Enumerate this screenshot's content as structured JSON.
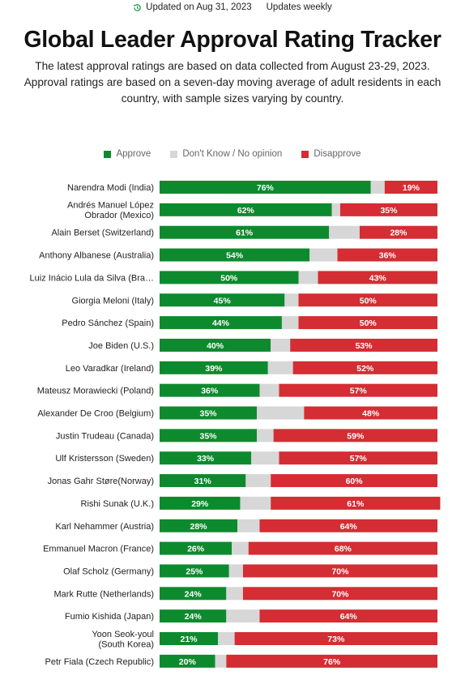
{
  "header": {
    "updated": "Updated on Aug 31, 2023",
    "frequency": "Updates weekly",
    "update_icon": "refresh-clock-icon"
  },
  "title": "Global Leader Approval Rating Tracker",
  "subtitle": "The latest approval ratings are based on data collected from August 23-29, 2023. Approval ratings are based on a seven-day moving average of adult residents in each country, with sample sizes varying by country.",
  "legend": [
    {
      "label": "Approve",
      "color": "#0e8a2e"
    },
    {
      "label": "Don't Know / No opinion",
      "color": "#d7d7d7"
    },
    {
      "label": "Disapprove",
      "color": "#d42d33"
    }
  ],
  "chart_data": {
    "type": "bar",
    "orientation": "horizontal",
    "stacked": true,
    "unit": "%",
    "xlim": [
      0,
      100
    ],
    "grid": false,
    "legend_position": "top",
    "categories": [
      [
        "Narendra Modi (India)"
      ],
      [
        "Andrés Manuel López",
        "Obrador (Mexico)"
      ],
      [
        "Alain Berset (Switzerland)"
      ],
      [
        "Anthony Albanese (Australia)"
      ],
      [
        "Luiz Inácio Lula da Silva (Bra…"
      ],
      [
        "Giorgia Meloni (Italy)"
      ],
      [
        "Pedro Sánchez (Spain)"
      ],
      [
        "Joe Biden (U.S.)"
      ],
      [
        "Leo Varadkar (Ireland)"
      ],
      [
        "Mateusz Morawiecki (Poland)"
      ],
      [
        "Alexander De Croo (Belgium)"
      ],
      [
        "Justin Trudeau (Canada)"
      ],
      [
        "Ulf Kristersson (Sweden)"
      ],
      [
        "Jonas Gahr Støre(Norway)"
      ],
      [
        "Rishi Sunak (U.K.)"
      ],
      [
        "Karl Nehammer (Austria)"
      ],
      [
        "Emmanuel Macron (France)"
      ],
      [
        "Olaf Scholz (Germany)"
      ],
      [
        "Mark Rutte (Netherlands)"
      ],
      [
        "Fumio Kishida (Japan)"
      ],
      [
        "Yoon Seok-youl",
        "(South Korea)"
      ],
      [
        "Petr Fiala (Czech Republic)"
      ]
    ],
    "series": [
      {
        "name": "Approve",
        "color": "#0e8a2e",
        "values": [
          76,
          62,
          61,
          54,
          50,
          45,
          44,
          40,
          39,
          36,
          35,
          35,
          33,
          31,
          29,
          28,
          26,
          25,
          24,
          24,
          21,
          20
        ]
      },
      {
        "name": "Don't Know / No opinion",
        "color": "#d7d7d7",
        "values": [
          5,
          3,
          11,
          10,
          7,
          5,
          6,
          7,
          9,
          7,
          17,
          6,
          10,
          9,
          11,
          8,
          6,
          5,
          6,
          12,
          6,
          4
        ]
      },
      {
        "name": "Disapprove",
        "color": "#d42d33",
        "values": [
          19,
          35,
          28,
          36,
          43,
          50,
          50,
          53,
          52,
          57,
          48,
          59,
          57,
          60,
          61,
          64,
          68,
          70,
          70,
          64,
          73,
          76
        ]
      }
    ],
    "data_labels": {
      "Approve": [
        "76%",
        "62%",
        "61%",
        "54%",
        "50%",
        "45%",
        "44%",
        "40%",
        "39%",
        "36%",
        "35%",
        "35%",
        "33%",
        "31%",
        "29%",
        "28%",
        "26%",
        "25%",
        "24%",
        "24%",
        "21%",
        "20%"
      ],
      "Disapprove": [
        "19%",
        "35%",
        "28%",
        "36%",
        "43%",
        "50%",
        "50%",
        "53%",
        "52%",
        "57%",
        "48%",
        "59%",
        "57%",
        "60%",
        "61%",
        "64%",
        "68%",
        "70%",
        "70%",
        "64%",
        "73%",
        "76%"
      ]
    }
  }
}
